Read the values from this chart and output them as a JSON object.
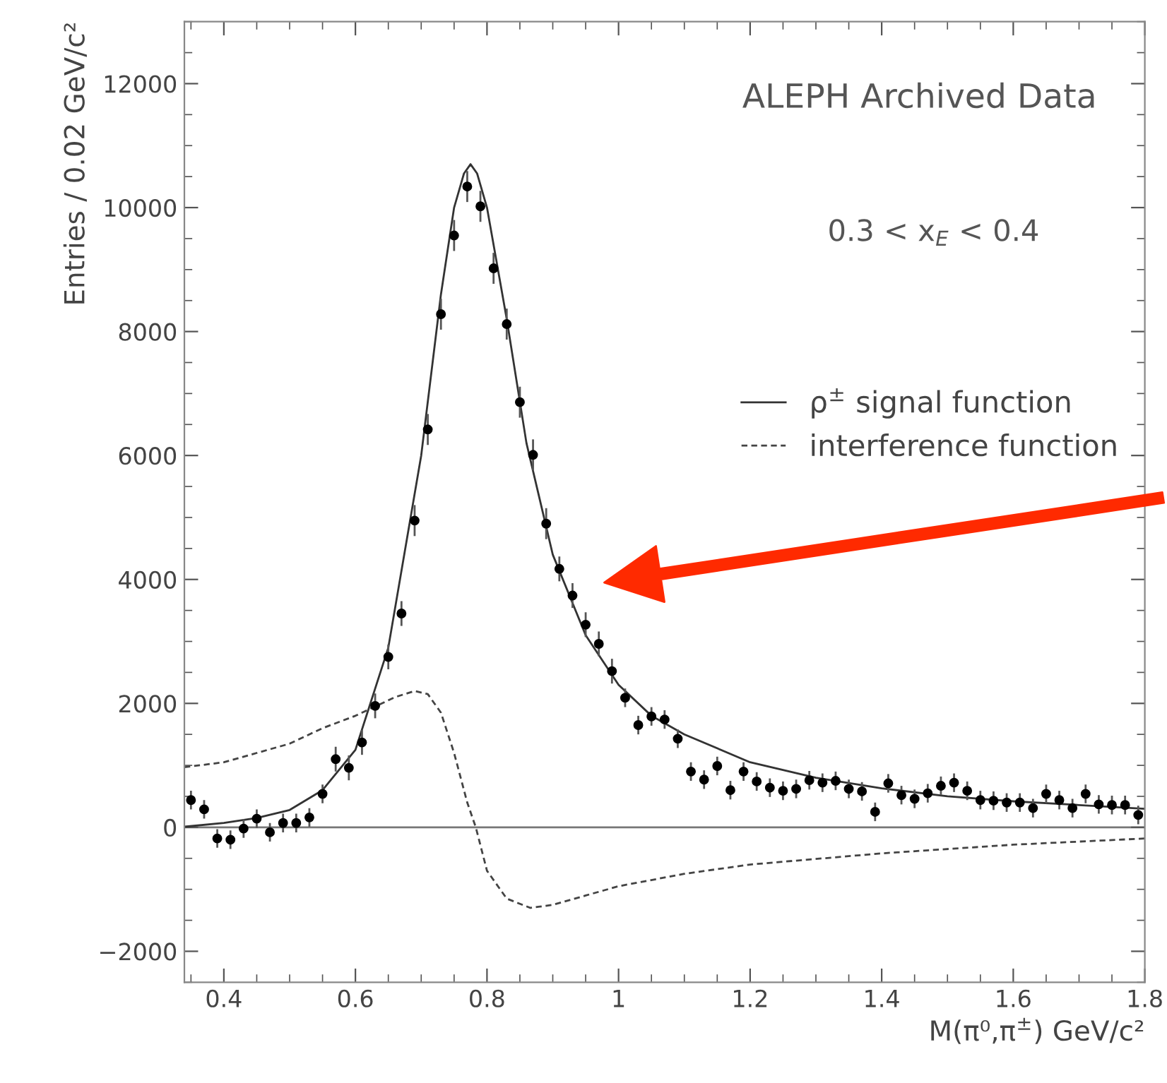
{
  "chart_data": {
    "type": "scatter",
    "xlabel": "M(π⁰,π$^{±}$) GeV/c²",
    "ylabel": "Entries / 0.02 GeV/c²",
    "annotations": [
      "ALEPH Archived Data",
      "0.3 < x$_{E}$ < 0.4"
    ],
    "xlim": [
      0.34,
      1.8
    ],
    "ylim": [
      -2500,
      13000
    ],
    "xticks": [
      0.4,
      0.6,
      0.8,
      1,
      1.2,
      1.4,
      1.6,
      1.8
    ],
    "yticks": [
      -2000,
      0,
      2000,
      4000,
      6000,
      8000,
      10000,
      12000
    ],
    "grid": false,
    "legend": "right",
    "ref_lines": [
      {
        "axis": "y",
        "value": 0,
        "color": "#777777",
        "line_style": "solid"
      }
    ],
    "series": [
      {
        "color": "#000000",
        "marker": "circle",
        "x": [
          0.35,
          0.37,
          0.39,
          0.41,
          0.43,
          0.45,
          0.47,
          0.49,
          0.51,
          0.53,
          0.55,
          0.57,
          0.59,
          0.61,
          0.63,
          0.65,
          0.67,
          0.69,
          0.71,
          0.73,
          0.75,
          0.77,
          0.79,
          0.81,
          0.83,
          0.85,
          0.87,
          0.89,
          0.91,
          0.93,
          0.95,
          0.97,
          0.99,
          1.01,
          1.03,
          1.05,
          1.07,
          1.09,
          1.11,
          1.13,
          1.15,
          1.17,
          1.19,
          1.21,
          1.23,
          1.25,
          1.27,
          1.29,
          1.31,
          1.33,
          1.35,
          1.37,
          1.39,
          1.41,
          1.43,
          1.45,
          1.47,
          1.49,
          1.51,
          1.53,
          1.55,
          1.57,
          1.59,
          1.61,
          1.63,
          1.65,
          1.67,
          1.69,
          1.71,
          1.73,
          1.75,
          1.77,
          1.79
        ],
        "values": [
          440,
          290,
          -180,
          -200,
          -20,
          140,
          -80,
          70,
          70,
          160,
          540,
          1100,
          960,
          1370,
          1960,
          2750,
          3450,
          4950,
          6420,
          8280,
          9550,
          10340,
          10020,
          9020,
          8120,
          6860,
          6010,
          4900,
          4170,
          3740,
          3270,
          2960,
          2520,
          2090,
          1650,
          1790,
          1740,
          1430,
          900,
          770,
          990,
          600,
          900,
          740,
          640,
          590,
          620,
          760,
          720,
          750,
          620,
          580,
          250,
          710,
          520,
          460,
          550,
          670,
          720,
          590,
          440,
          430,
          400,
          400,
          310,
          540,
          440,
          310,
          540,
          370,
          360,
          360,
          200
        ],
        "errors": [
          150,
          150,
          150,
          150,
          150,
          150,
          150,
          150,
          150,
          150,
          150,
          200,
          200,
          200,
          200,
          200,
          200,
          250,
          250,
          250,
          250,
          250,
          250,
          250,
          250,
          250,
          250,
          250,
          200,
          200,
          200,
          200,
          200,
          150,
          150,
          150,
          150,
          150,
          150,
          150,
          150,
          150,
          150,
          150,
          150,
          150,
          150,
          150,
          150,
          150,
          150,
          150,
          150,
          150,
          150,
          150,
          150,
          150,
          150,
          150,
          150,
          150,
          150,
          150,
          150,
          150,
          150,
          150,
          150,
          150,
          150,
          150,
          150
        ]
      },
      {
        "type": "line",
        "name": "ρ$^{±}$ signal function",
        "color": "#333333",
        "line_style": "solid",
        "marker": "none",
        "x": [
          0.34,
          0.4,
          0.45,
          0.5,
          0.55,
          0.6,
          0.65,
          0.7,
          0.73,
          0.75,
          0.765,
          0.775,
          0.785,
          0.8,
          0.83,
          0.86,
          0.9,
          0.95,
          1.0,
          1.05,
          1.1,
          1.2,
          1.3,
          1.4,
          1.5,
          1.6,
          1.7,
          1.8
        ],
        "values": [
          10,
          70,
          150,
          280,
          600,
          1250,
          2900,
          6000,
          8600,
          10000,
          10550,
          10700,
          10550,
          10000,
          8200,
          6200,
          4400,
          3100,
          2300,
          1800,
          1500,
          1050,
          800,
          630,
          500,
          420,
          360,
          300
        ]
      },
      {
        "type": "line",
        "name": "interference function",
        "color": "#444444",
        "line_style": "dashed",
        "marker": "none",
        "x": [
          0.34,
          0.4,
          0.45,
          0.5,
          0.55,
          0.6,
          0.63,
          0.66,
          0.69,
          0.71,
          0.73,
          0.75,
          0.77,
          0.783,
          0.8,
          0.83,
          0.866,
          0.9,
          0.95,
          1.0,
          1.1,
          1.2,
          1.4,
          1.6,
          1.8
        ],
        "values": [
          970,
          1050,
          1200,
          1350,
          1600,
          1800,
          1950,
          2100,
          2200,
          2150,
          1850,
          1200,
          400,
          0,
          -700,
          -1150,
          -1300,
          -1250,
          -1100,
          -950,
          -750,
          -600,
          -420,
          -280,
          -180
        ]
      }
    ]
  }
}
